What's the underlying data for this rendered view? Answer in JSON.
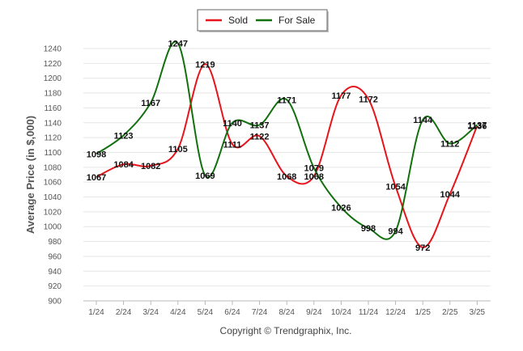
{
  "chart_data": {
    "type": "line",
    "ylabel": "Average Price (in $,000)",
    "ylim": [
      900,
      1240
    ],
    "yticks": [
      900,
      920,
      940,
      960,
      980,
      1000,
      1020,
      1040,
      1060,
      1080,
      1100,
      1120,
      1140,
      1160,
      1180,
      1200,
      1220,
      1240
    ],
    "categories": [
      "1/24",
      "2/24",
      "3/24",
      "4/24",
      "5/24",
      "6/24",
      "7/24",
      "8/24",
      "9/24",
      "10/24",
      "11/24",
      "12/24",
      "1/25",
      "2/25",
      "3/25"
    ],
    "grid": true,
    "legend_position": "top-center",
    "series": [
      {
        "name": "Sold",
        "color": "#e8141c",
        "values": [
          1067,
          1084,
          1082,
          1105,
          1219,
          1111,
          1122,
          1068,
          1068,
          1177,
          1172,
          1054,
          972,
          1044,
          1136
        ]
      },
      {
        "name": "For Sale",
        "color": "#13700e",
        "values": [
          1098,
          1123,
          1167,
          1247,
          1069,
          1140,
          1137,
          1171,
          1079,
          1026,
          998,
          994,
          1144,
          1112,
          1137
        ]
      }
    ]
  },
  "footer": {
    "copyright": "Copyright © Trendgraphix, Inc."
  }
}
